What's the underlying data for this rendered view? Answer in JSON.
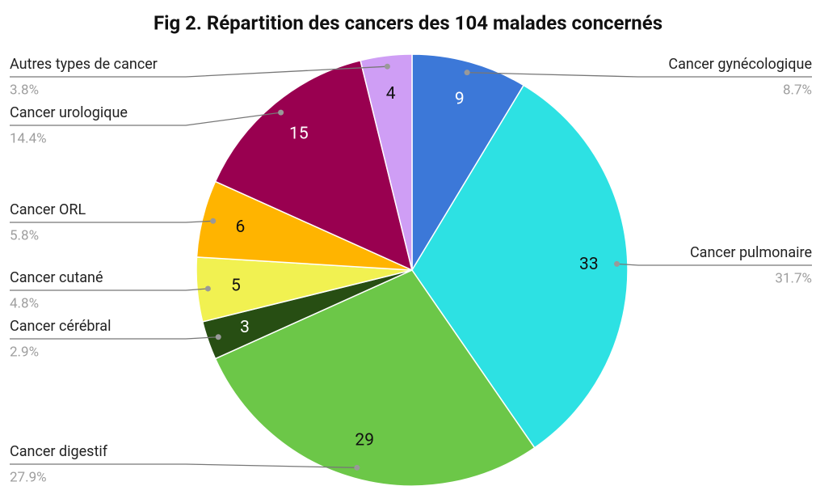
{
  "chart_data": {
    "type": "pie",
    "title": "Fig 2. Répartition des cancers des 104 malades concernés",
    "categories": [
      "Cancer gynécologique",
      "Cancer pulmonaire",
      "Cancer digestif",
      "Cancer cérébral",
      "Cancer cutané",
      "Cancer ORL",
      "Cancer urologique",
      "Autres types de cancer"
    ],
    "values": [
      9,
      33,
      29,
      3,
      5,
      6,
      15,
      4
    ],
    "percent_labels": [
      "8.7%",
      "31.7%",
      "27.9%",
      "2.9%",
      "4.8%",
      "5.8%",
      "14.4%",
      "3.8%"
    ],
    "colors": [
      "#3c78d8",
      "#2de1e3",
      "#6cc748",
      "#274e13",
      "#f1f151",
      "#ffb400",
      "#990050",
      "#cf9ef5"
    ]
  }
}
